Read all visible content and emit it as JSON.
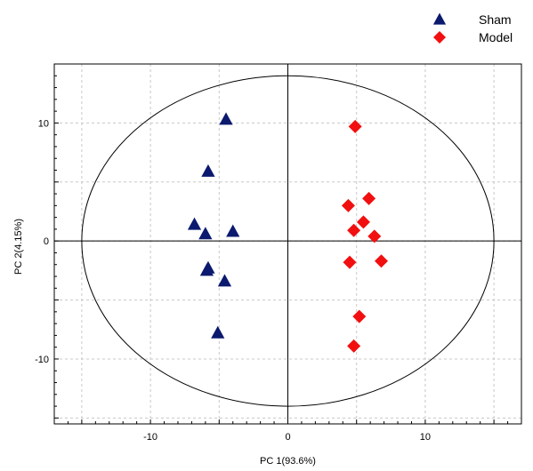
{
  "chart_data": {
    "type": "scatter",
    "xlabel": "PC 1(93.6%)",
    "ylabel": "PC 2(4.15%)",
    "xlim": [
      -17,
      17
    ],
    "ylim": [
      -15.5,
      15
    ],
    "xticks": [
      -10,
      0,
      10
    ],
    "yticks": [
      -10,
      0,
      10
    ],
    "xtick_labels": [
      "-10",
      "0",
      "10"
    ],
    "ytick_labels": [
      "-10",
      "0",
      "10"
    ],
    "grid": true,
    "legend_position": "top-right",
    "ellipse": {
      "cx": 0,
      "cy": 0,
      "rx": 15,
      "ry": 14
    },
    "series": [
      {
        "name": "Sham",
        "marker": "triangle",
        "color": "#0b1a6e",
        "points": [
          [
            -4.5,
            10.3
          ],
          [
            -5.8,
            5.9
          ],
          [
            -6.8,
            1.4
          ],
          [
            -6.0,
            0.6
          ],
          [
            -4.0,
            0.8
          ],
          [
            -5.8,
            -2.3
          ],
          [
            -5.9,
            -2.5
          ],
          [
            -4.6,
            -3.4
          ],
          [
            -5.1,
            -7.8
          ]
        ]
      },
      {
        "name": "Model",
        "marker": "diamond",
        "color": "#f20f0f",
        "points": [
          [
            4.9,
            9.7
          ],
          [
            5.9,
            3.6
          ],
          [
            4.4,
            3.0
          ],
          [
            5.5,
            1.6
          ],
          [
            4.8,
            0.9
          ],
          [
            6.3,
            0.4
          ],
          [
            4.5,
            -1.8
          ],
          [
            6.8,
            -1.7
          ],
          [
            5.2,
            -6.4
          ],
          [
            4.8,
            -8.9
          ]
        ]
      }
    ]
  }
}
